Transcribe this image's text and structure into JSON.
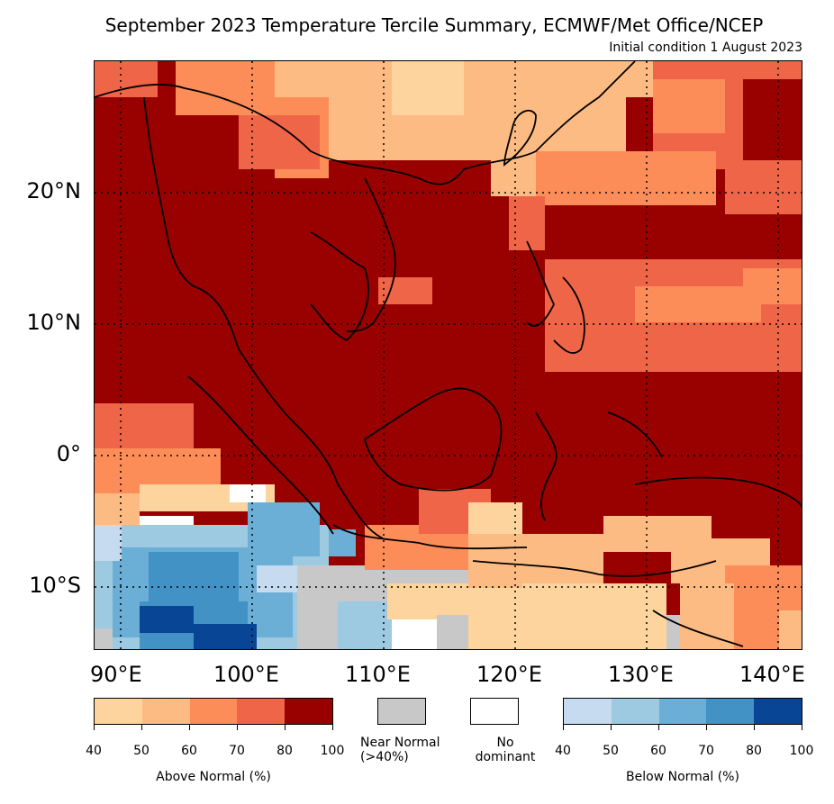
{
  "title": "September 2023 Temperature Tercile Summary, ECMWF/Met Office/NCEP",
  "subtitle": "Initial condition 1 August 2023",
  "lat_labels": [
    "20°N",
    "10°N",
    "0°",
    "10°S"
  ],
  "lon_labels": [
    "90°E",
    "100°E",
    "110°E",
    "120°E",
    "130°E",
    "140°E"
  ],
  "colors": {
    "above": [
      "#fdd49e",
      "#fdbb84",
      "#fc8d59",
      "#ef6548",
      "#990000"
    ],
    "near_normal": "#c8c8c8",
    "no_dominant": "#ffffff",
    "below": [
      "#c6dbef",
      "#9ecae1",
      "#6baed6",
      "#4292c6",
      "#084594"
    ]
  },
  "above_bar": {
    "ticks": [
      "40",
      "50",
      "60",
      "70",
      "80",
      "100"
    ],
    "label": "Above Normal (%)"
  },
  "near_normal_label": "Near Normal\n(>40%)",
  "no_dominant_label": "No\ndominant",
  "below_bar": {
    "ticks": [
      "40",
      "50",
      "60",
      "70",
      "80",
      "100"
    ],
    "label": "Below Normal (%)"
  }
}
